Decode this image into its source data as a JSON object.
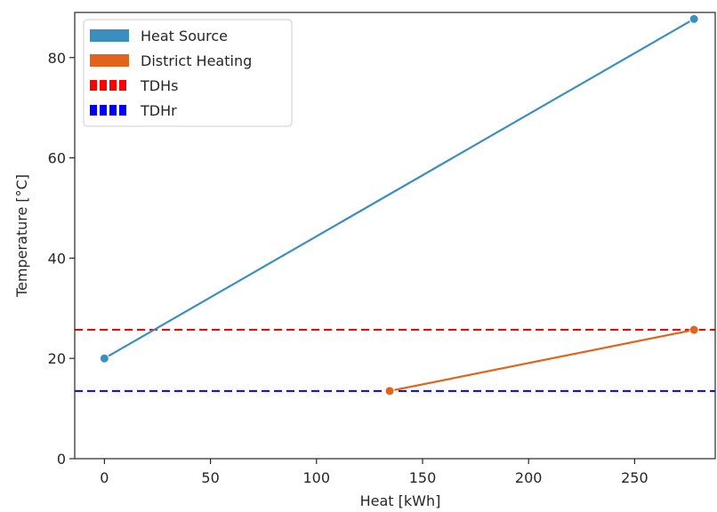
{
  "chart_data": {
    "type": "line",
    "xlabel": "Heat [kWh]",
    "ylabel": "Temperature [°C]",
    "xlim": [
      -14,
      288
    ],
    "ylim": [
      0,
      89
    ],
    "xticks": [
      0,
      50,
      100,
      150,
      200,
      250
    ],
    "yticks": [
      0,
      20,
      40,
      60,
      80
    ],
    "grid": false,
    "legend_position": "top-left",
    "series": [
      {
        "name": "Heat Source",
        "color": "#3b8fbf",
        "x": [
          0,
          278
        ],
        "y": [
          20,
          87.7
        ]
      },
      {
        "name": "District Heating",
        "color": "#e1641a",
        "x": [
          134.5,
          278
        ],
        "y": [
          13.5,
          25.7
        ]
      }
    ],
    "hlines": [
      {
        "name": "TDHs",
        "color": "#ff0000",
        "y": 25.7,
        "style": "dashed"
      },
      {
        "name": "TDHr",
        "color": "#0000ff",
        "y": 13.5,
        "style": "dashed"
      }
    ]
  }
}
